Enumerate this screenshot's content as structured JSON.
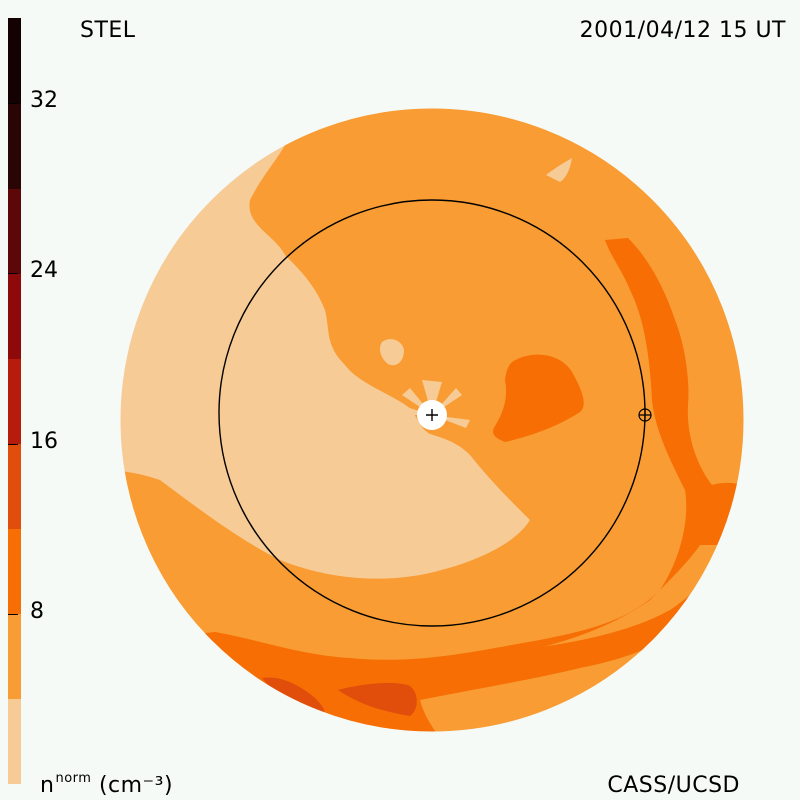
{
  "header": {
    "source": "STEL",
    "timestamp": "2001/04/12 15 UT"
  },
  "footer": {
    "unit_base": "n",
    "unit_sup": "norm",
    "unit_rest": "(cm⁻³)",
    "credit": "CASS/UCSD"
  },
  "colors": {
    "background": "#f5faf7",
    "levels": [
      "#f7cb96",
      "#f89c33",
      "#f66e04",
      "#e14d0b",
      "#b61b0c",
      "#8e0909",
      "#5c0808",
      "#2a0505",
      "#140202"
    ]
  },
  "chart_data": {
    "type": "heatmap",
    "projection": "polar sky map",
    "colorbar": {
      "min": 0,
      "max": 36,
      "step": 4,
      "ticks": [
        8,
        16,
        24,
        32
      ],
      "tick_labels": [
        "8",
        "16",
        "24",
        "32"
      ]
    },
    "markers": [
      {
        "name": "sun",
        "symbol": "+"
      },
      {
        "name": "earth",
        "symbol": "⊕"
      }
    ],
    "reference_circle": true
  }
}
